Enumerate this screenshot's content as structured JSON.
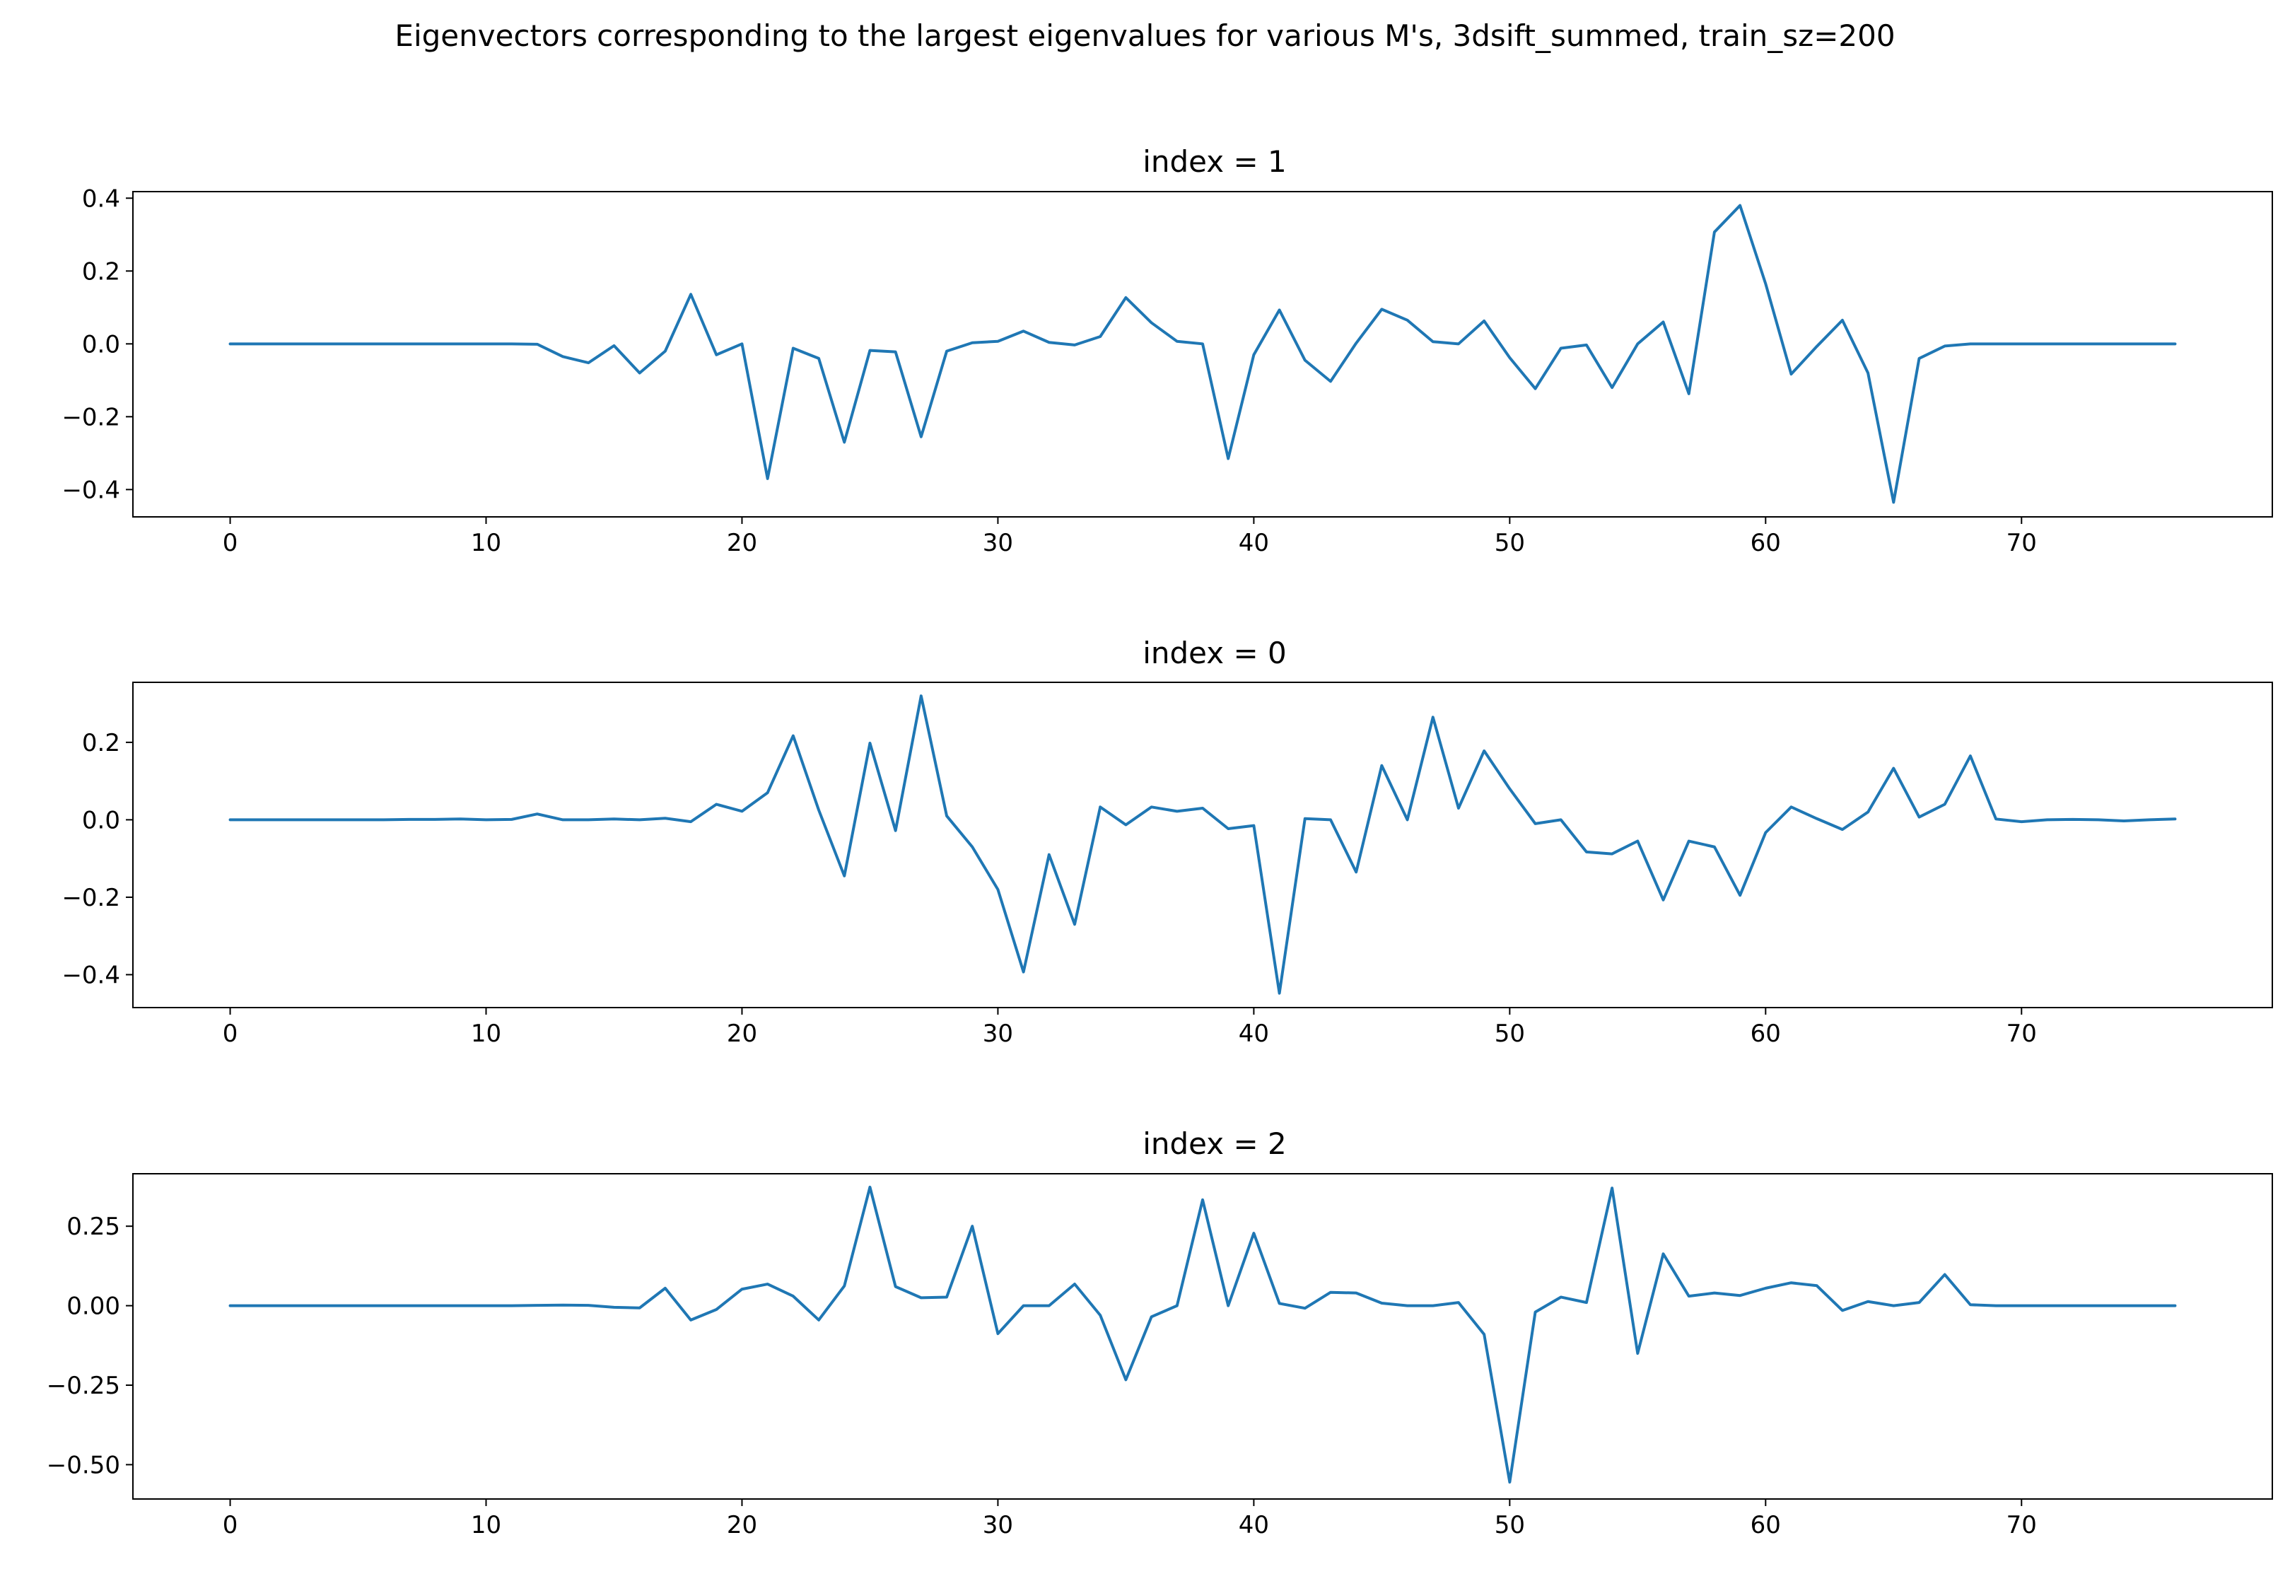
{
  "figure": {
    "suptitle": "Eigenvectors corresponding to the largest eigenvalues for various M's, 3dsift_summed, train_sz=200",
    "line_color": "#1f77b4"
  },
  "chart_data": [
    {
      "type": "line",
      "title": "index = 1",
      "xlim": [
        -3.8,
        79.8
      ],
      "ylim": [
        -0.475,
        0.418
      ],
      "xticks": [
        0,
        10,
        20,
        30,
        40,
        50,
        60,
        70
      ],
      "yticks": [
        -0.4,
        -0.2,
        0.0,
        0.2,
        0.4
      ],
      "ytick_labels": [
        "−0.4",
        "−0.2",
        "0.0",
        "0.2",
        "0.4"
      ],
      "grid": false,
      "series": [
        {
          "x_start": 0,
          "values": [
            0.0,
            0.0,
            0.0,
            0.0,
            0.0,
            0.0,
            0.0,
            0.0,
            0.0,
            0.0,
            0.0,
            0.0,
            -0.001,
            -0.035,
            -0.052,
            -0.005,
            -0.08,
            -0.02,
            0.136,
            -0.03,
            0.0,
            -0.37,
            -0.012,
            -0.04,
            -0.27,
            -0.018,
            -0.022,
            -0.255,
            -0.02,
            0.003,
            0.007,
            0.035,
            0.004,
            -0.003,
            0.02,
            0.127,
            0.058,
            0.007,
            0.0,
            -0.315,
            -0.03,
            0.093,
            -0.045,
            -0.103,
            0.002,
            0.095,
            0.065,
            0.006,
            0.0,
            0.063,
            -0.038,
            -0.123,
            -0.012,
            -0.003,
            -0.12,
            0.0,
            0.06,
            -0.137,
            0.307,
            0.38,
            0.165,
            -0.083,
            -0.007,
            0.065,
            -0.08,
            -0.435,
            -0.04,
            -0.006,
            0.0,
            0.0,
            0.0,
            0.0,
            0.0,
            0.0,
            0.0,
            0.0,
            0.0
          ]
        }
      ]
    },
    {
      "type": "line",
      "title": "index = 0",
      "xlim": [
        -3.8,
        79.8
      ],
      "ylim": [
        -0.485,
        0.355
      ],
      "xticks": [
        0,
        10,
        20,
        30,
        40,
        50,
        60,
        70
      ],
      "yticks": [
        -0.4,
        -0.2,
        0.0,
        0.2
      ],
      "ytick_labels": [
        "−0.4",
        "−0.2",
        "0.0",
        "0.2"
      ],
      "grid": false,
      "series": [
        {
          "x_start": 0,
          "values": [
            0.0,
            0.0,
            0.0,
            0.0,
            0.0,
            0.0,
            0.0,
            0.001,
            0.001,
            0.002,
            0.0,
            0.001,
            0.015,
            0.0,
            0.0,
            0.002,
            0.0,
            0.004,
            -0.005,
            0.04,
            0.022,
            0.07,
            0.217,
            0.025,
            -0.145,
            0.198,
            -0.028,
            0.32,
            0.01,
            -0.07,
            -0.18,
            -0.393,
            -0.09,
            -0.27,
            0.033,
            -0.013,
            0.033,
            0.022,
            0.03,
            -0.023,
            -0.015,
            -0.448,
            0.003,
            0.0,
            -0.135,
            0.14,
            0.0,
            0.265,
            0.03,
            0.178,
            0.08,
            -0.01,
            0.0,
            -0.083,
            -0.088,
            -0.055,
            -0.207,
            -0.055,
            -0.07,
            -0.195,
            -0.033,
            0.033,
            0.003,
            -0.025,
            0.02,
            0.133,
            0.007,
            0.04,
            0.165,
            0.002,
            -0.005,
            0.0,
            0.001,
            0.0,
            -0.003,
            0.0,
            0.002
          ]
        }
      ]
    },
    {
      "type": "line",
      "title": "index = 2",
      "xlim": [
        -3.8,
        79.8
      ],
      "ylim": [
        -0.608,
        0.415
      ],
      "xticks": [
        0,
        10,
        20,
        30,
        40,
        50,
        60,
        70
      ],
      "yticks": [
        -0.5,
        -0.25,
        0.0,
        0.25
      ],
      "ytick_labels": [
        "−0.50",
        "−0.25",
        "0.00",
        "0.25"
      ],
      "grid": false,
      "series": [
        {
          "x_start": 0,
          "values": [
            0.0,
            0.0,
            0.0,
            0.0,
            0.0,
            0.0,
            0.0,
            0.0,
            0.0,
            0.0,
            0.0,
            0.0,
            0.001,
            0.002,
            0.001,
            -0.005,
            -0.007,
            0.055,
            -0.045,
            -0.012,
            0.052,
            0.068,
            0.03,
            -0.045,
            0.062,
            0.373,
            0.06,
            0.025,
            0.027,
            0.25,
            -0.088,
            0.0,
            0.0,
            0.068,
            -0.03,
            -0.233,
            -0.035,
            0.0,
            0.333,
            0.0,
            0.228,
            0.007,
            -0.008,
            0.042,
            0.04,
            0.008,
            0.0,
            0.0,
            0.01,
            -0.09,
            -0.555,
            -0.02,
            0.027,
            0.01,
            0.37,
            -0.15,
            0.163,
            0.03,
            0.04,
            0.032,
            0.055,
            0.072,
            0.063,
            -0.015,
            0.013,
            0.0,
            0.01,
            0.098,
            0.003,
            0.0,
            0.0,
            0.0,
            0.0,
            0.0,
            0.0,
            0.0,
            0.0
          ]
        }
      ]
    }
  ]
}
